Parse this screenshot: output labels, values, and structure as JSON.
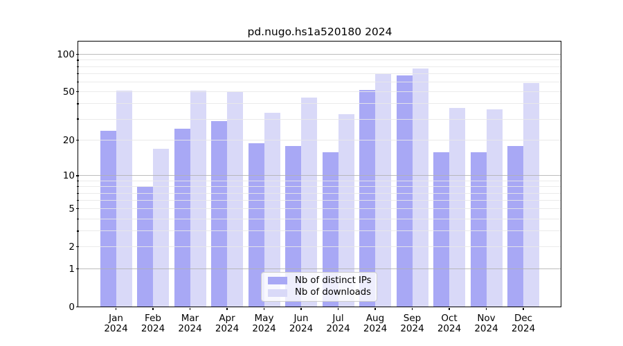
{
  "figure": {
    "title": "pd.nugo.hs1a520180 2024",
    "background_color": "#ffffff"
  },
  "chart_data": {
    "type": "bar",
    "title": "pd.nugo.hs1a520180 2024",
    "xlabel": "",
    "ylabel": "",
    "year_label": "2024",
    "categories": [
      "Jan",
      "Feb",
      "Mar",
      "Apr",
      "May",
      "Jun",
      "Jul",
      "Aug",
      "Sep",
      "Oct",
      "Nov",
      "Dec"
    ],
    "series": [
      {
        "name": "Nb of distinct IPs",
        "color": "#a8a8f5",
        "values": [
          24,
          8,
          25,
          29,
          19,
          18,
          16,
          52,
          68,
          16,
          16,
          18
        ]
      },
      {
        "name": "Nb of downloads",
        "color": "#d9d9f8",
        "values": [
          51,
          17,
          51,
          50,
          34,
          45,
          33,
          70,
          77,
          37,
          36,
          59
        ]
      }
    ],
    "y_scale": "log1p",
    "ylim": [
      0,
      127
    ],
    "y_tick_labels": [
      0,
      1,
      2,
      5,
      10,
      20,
      50,
      100
    ],
    "y_major_gridlines": [
      1,
      10,
      100
    ],
    "y_minor_gridlines": [
      2,
      3,
      4,
      5,
      6,
      7,
      8,
      9,
      20,
      30,
      40,
      50,
      60,
      70,
      80,
      90
    ],
    "grid": true,
    "grid_color_major": "#b0b0b0",
    "grid_color_minor": "#e8e8e8",
    "axis_color": "#000000",
    "legend": {
      "position": "lower-center",
      "labels": [
        "Nb of distinct IPs",
        "Nb of downloads"
      ]
    }
  }
}
